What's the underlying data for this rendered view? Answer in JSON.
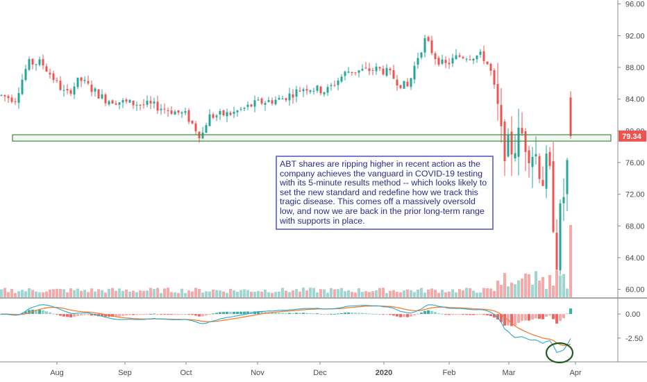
{
  "chart_data": {
    "type": "candlestick",
    "price_axis": {
      "ticks": [
        "96.00",
        "92.00",
        "88.00",
        "84.00",
        "80.00",
        "76.00",
        "72.00",
        "68.00",
        "64.00",
        "60.00"
      ],
      "range": [
        59.0,
        96.5
      ]
    },
    "last_price": "79.34",
    "macd_axis": {
      "ticks": [
        "0.00",
        "-2.50"
      ],
      "range": [
        -4.9,
        1.6
      ]
    },
    "x_labels": [
      "Aug",
      "Sep",
      "Oct",
      "Nov",
      "Dec",
      "2020",
      "Feb",
      "Mar",
      "Apr"
    ],
    "colors": {
      "up": "#26a69a",
      "down": "#ef5350",
      "macd_line": "#2aa7c9",
      "signal_line": "#f57c33",
      "support_box": "#3c8a3c"
    },
    "support_zone": [
      78.7,
      79.5
    ],
    "annotation": "ABT shares are ripping higher in recent action as the company achieves the vanguard in COVID-19 testing with its 5-minute results method -- which looks likely to set the new standard and redefine how we track this tragic disease. This comes off a massively oversold low, and now we are back in the prior long-term range with supports in place."
  }
}
